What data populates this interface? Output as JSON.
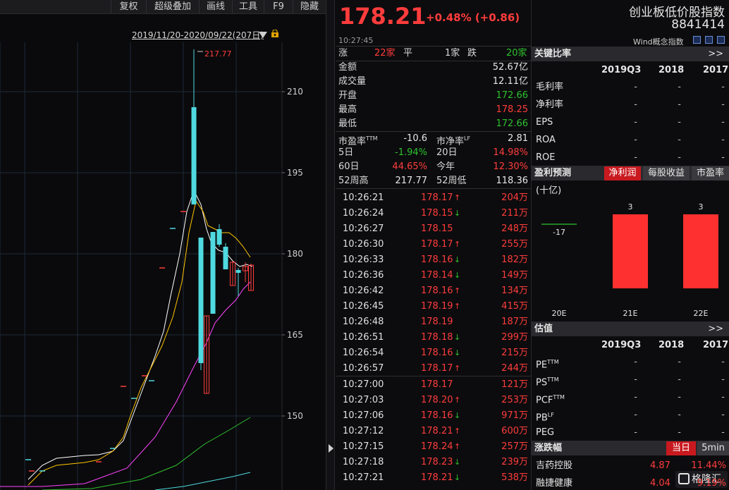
{
  "toolbar": {
    "buttons": [
      "复权",
      "超级叠加",
      "画线",
      "工具",
      "F9",
      "隐藏"
    ]
  },
  "chart": {
    "range_label": "2019/11/20-2020/09/22(207日)",
    "max_label": "217.77",
    "y_ticks": [
      "210",
      "195",
      "180",
      "165",
      "150"
    ],
    "colors": {
      "up": "#4fd9e0",
      "down": "#ff3c3c",
      "ma5": "#ffffff",
      "ma10": "#ffc400",
      "ma20": "#ff44ff",
      "ma60": "#2ec12e",
      "ma120": "#4fd9e0"
    }
  },
  "quote": {
    "price": "178.21",
    "change": "+0.48% (+0.86)",
    "time": "10:27:45",
    "breadth": {
      "up_label": "涨",
      "up_count": "22家",
      "flat_label": "平",
      "flat_count": "1家",
      "down_label": "跌",
      "down_count": "20家"
    },
    "rows": [
      {
        "label": "金额",
        "value": "52.67亿",
        "color": "white"
      },
      {
        "label": "成交量",
        "value": "12.11亿",
        "color": "white"
      },
      {
        "label": "开盘",
        "value": "172.66",
        "color": "green"
      },
      {
        "label": "最高",
        "value": "178.25",
        "color": "red"
      },
      {
        "label": "最低",
        "value": "172.66",
        "color": "green"
      }
    ],
    "stats": [
      {
        "l1": "市盈率TTM",
        "v1": "-10.6",
        "c1": "white",
        "l2": "市净率LF",
        "v2": "2.81",
        "c2": "white"
      },
      {
        "l1": "5日",
        "v1": "-1.94%",
        "c1": "green",
        "l2": "20日",
        "v2": "14.98%",
        "c2": "red"
      },
      {
        "l1": "60日",
        "v1": "44.65%",
        "c1": "red",
        "l2": "今年",
        "v2": "12.30%",
        "c2": "red"
      },
      {
        "l1": "52周高",
        "v1": "217.77",
        "c1": "white",
        "l2": "52周低",
        "v2": "118.36",
        "c2": "white"
      }
    ],
    "ticks": [
      {
        "time": "10:26:21",
        "price": "178.17",
        "arrow": "up",
        "vol": "204万"
      },
      {
        "time": "10:26:24",
        "price": "178.15",
        "arrow": "down",
        "vol": "211万"
      },
      {
        "time": "10:26:27",
        "price": "178.15",
        "arrow": "",
        "vol": "248万"
      },
      {
        "time": "10:26:30",
        "price": "178.17",
        "arrow": "up",
        "vol": "255万"
      },
      {
        "time": "10:26:33",
        "price": "178.16",
        "arrow": "down",
        "vol": "182万"
      },
      {
        "time": "10:26:36",
        "price": "178.14",
        "arrow": "down",
        "vol": "149万"
      },
      {
        "time": "10:26:42",
        "price": "178.16",
        "arrow": "up",
        "vol": "134万"
      },
      {
        "time": "10:26:45",
        "price": "178.19",
        "arrow": "up",
        "vol": "415万"
      },
      {
        "time": "10:26:48",
        "price": "178.19",
        "arrow": "",
        "vol": "187万"
      },
      {
        "time": "10:26:51",
        "price": "178.18",
        "arrow": "down",
        "vol": "299万"
      },
      {
        "time": "10:26:54",
        "price": "178.16",
        "arrow": "down",
        "vol": "215万"
      },
      {
        "time": "10:26:57",
        "price": "178.17",
        "arrow": "up",
        "vol": "244万"
      },
      {
        "time": "10:27:00",
        "price": "178.17",
        "arrow": "",
        "vol": "121万"
      },
      {
        "time": "10:27:03",
        "price": "178.20",
        "arrow": "up",
        "vol": "253万"
      },
      {
        "time": "10:27:06",
        "price": "178.16",
        "arrow": "down",
        "vol": "971万"
      },
      {
        "time": "10:27:12",
        "price": "178.21",
        "arrow": "up",
        "vol": "600万"
      },
      {
        "time": "10:27:15",
        "price": "178.24",
        "arrow": "up",
        "vol": "257万"
      },
      {
        "time": "10:27:18",
        "price": "178.23",
        "arrow": "down",
        "vol": "239万"
      },
      {
        "time": "10:27:21",
        "price": "178.21",
        "arrow": "down",
        "vol": "538万"
      }
    ]
  },
  "right": {
    "index_name": "创业板低价股指数",
    "index_code": "8841414",
    "category": "Wind概念指数",
    "key_ratios": {
      "title": "关键比率",
      "more": ">>",
      "headers": [
        "2019Q3",
        "2018",
        "2017"
      ],
      "rows": [
        {
          "label": "毛利率",
          "v": [
            "-",
            "-",
            "-"
          ]
        },
        {
          "label": "净利率",
          "v": [
            "-",
            "-",
            "-"
          ]
        },
        {
          "label": "EPS",
          "v": [
            "-",
            "-",
            "-"
          ]
        },
        {
          "label": "ROA",
          "v": [
            "-",
            "-",
            "-"
          ]
        },
        {
          "label": "ROE",
          "v": [
            "-",
            "-",
            "-"
          ]
        }
      ]
    },
    "forecast": {
      "title": "盈利预测",
      "tabs": [
        "净利润",
        "每股收益",
        "市盈率"
      ],
      "active_tab": "净利润",
      "unit": "(十亿)"
    },
    "valuation": {
      "title": "估值",
      "more": ">>",
      "headers": [
        "2019Q3",
        "2018",
        "2017"
      ],
      "rows": [
        {
          "label": "PETTM",
          "v": [
            "-",
            "-",
            "-"
          ]
        },
        {
          "label": "PSTTM",
          "v": [
            "-",
            "-",
            "-"
          ]
        },
        {
          "label": "PCFTTM",
          "v": [
            "-",
            "-",
            "-"
          ]
        },
        {
          "label": "PBLF",
          "v": [
            "-",
            "-",
            "-"
          ]
        },
        {
          "label": "PEG",
          "v": [
            "-",
            "-",
            "-"
          ]
        }
      ]
    },
    "movers": {
      "title": "涨跌幅",
      "tabs": [
        "当日",
        "5min"
      ],
      "active_tab": "当日",
      "rows": [
        {
          "name": "吉药控股",
          "price": "4.87",
          "pct": "11.44%"
        },
        {
          "name": "融捷健康",
          "price": "4.04",
          "pct": "9.19%"
        }
      ]
    },
    "watermark": "格隆汇"
  },
  "chart_data": {
    "type": "bar",
    "title": "",
    "categories": [
      "20E",
      "21E",
      "22E"
    ],
    "values": [
      -17,
      3,
      3
    ],
    "data_labels": [
      "-17",
      "3",
      "3"
    ],
    "colors": [
      "#2ec12e",
      "#ff3030",
      "#ff3030"
    ]
  }
}
